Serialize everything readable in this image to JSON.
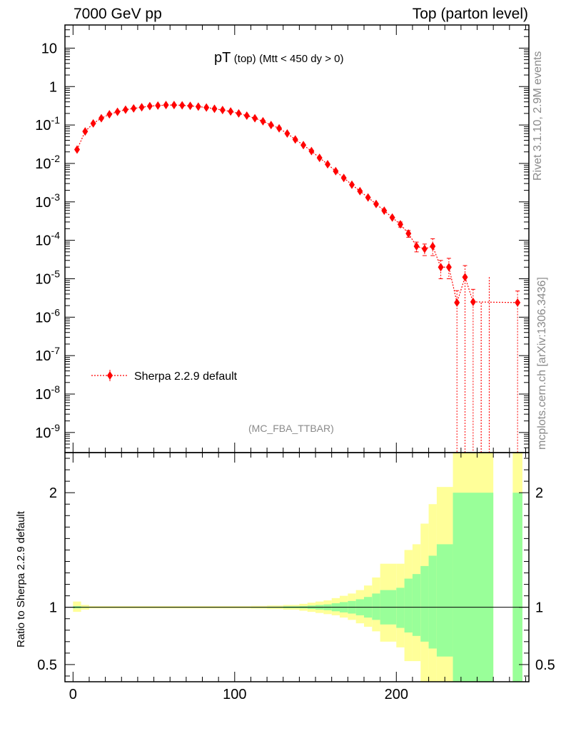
{
  "header": {
    "left": "7000 GeV pp",
    "right": "Top (parton level)"
  },
  "plot_title": {
    "main": "pT",
    "sub1": "(top)",
    "sub2": "(Mtt < 450 dy > 0)"
  },
  "side_labels": {
    "rivet": "Rivet 3.1.10,  2.9M events",
    "mcplots": "mcplots.cern.ch [arXiv:1306.3436]"
  },
  "analysis_tag": "(MC_FBA_TTBAR)",
  "ratio_ylabel": "Ratio to Sherpa 2.2.9 default",
  "colors": {
    "series": "#ff0000",
    "band_inner": "#99ff99",
    "band_outer": "#ffff99",
    "tag": "#8a8a8a"
  },
  "chart_data": {
    "type": "scatter",
    "xlim": [
      -5,
      282
    ],
    "main_panel": {
      "yscale": "log",
      "ylim": [
        3e-10,
        40
      ],
      "yticks": [
        {
          "v": 1e-09,
          "base": "10",
          "exp": "-9"
        },
        {
          "v": 1e-08,
          "base": "10",
          "exp": "-8"
        },
        {
          "v": 1e-07,
          "base": "10",
          "exp": "-7"
        },
        {
          "v": 1e-06,
          "base": "10",
          "exp": "-6"
        },
        {
          "v": 1e-05,
          "base": "10",
          "exp": "-5"
        },
        {
          "v": 0.0001,
          "base": "10",
          "exp": "-4"
        },
        {
          "v": 0.001,
          "base": "10",
          "exp": "-3"
        },
        {
          "v": 0.01,
          "base": "10",
          "exp": "-2"
        },
        {
          "v": 0.1,
          "base": "10",
          "exp": "-1"
        },
        {
          "v": 1,
          "base": "1",
          "exp": ""
        },
        {
          "v": 10,
          "base": "10",
          "exp": ""
        }
      ]
    },
    "ratio_panel": {
      "ylim": [
        0.35,
        2.35
      ],
      "yticks": [
        0.5,
        1,
        2
      ],
      "ytick_labels": [
        "0.5",
        "1",
        "2"
      ],
      "bands": [
        {
          "x0": 0,
          "x1": 5,
          "in_lo": 0.99,
          "in_hi": 1.01,
          "out_lo": 0.96,
          "out_hi": 1.05
        },
        {
          "x0": 5,
          "x1": 10,
          "in_lo": 0.995,
          "in_hi": 1.005,
          "out_lo": 0.98,
          "out_hi": 1.02
        },
        {
          "x0": 10,
          "x1": 110,
          "in_lo": 0.997,
          "in_hi": 1.003,
          "out_lo": 0.99,
          "out_hi": 1.01
        },
        {
          "x0": 110,
          "x1": 120,
          "in_lo": 0.996,
          "in_hi": 1.004,
          "out_lo": 0.988,
          "out_hi": 1.012
        },
        {
          "x0": 120,
          "x1": 130,
          "in_lo": 0.995,
          "in_hi": 1.005,
          "out_lo": 0.985,
          "out_hi": 1.015
        },
        {
          "x0": 130,
          "x1": 140,
          "in_lo": 0.992,
          "in_hi": 1.008,
          "out_lo": 0.98,
          "out_hi": 1.02
        },
        {
          "x0": 140,
          "x1": 145,
          "in_lo": 0.99,
          "in_hi": 1.01,
          "out_lo": 0.97,
          "out_hi": 1.03
        },
        {
          "x0": 145,
          "x1": 150,
          "in_lo": 0.985,
          "in_hi": 1.015,
          "out_lo": 0.96,
          "out_hi": 1.04
        },
        {
          "x0": 150,
          "x1": 155,
          "in_lo": 0.98,
          "in_hi": 1.02,
          "out_lo": 0.95,
          "out_hi": 1.05
        },
        {
          "x0": 155,
          "x1": 160,
          "in_lo": 0.975,
          "in_hi": 1.025,
          "out_lo": 0.94,
          "out_hi": 1.06
        },
        {
          "x0": 160,
          "x1": 165,
          "in_lo": 0.965,
          "in_hi": 1.035,
          "out_lo": 0.93,
          "out_hi": 1.08
        },
        {
          "x0": 165,
          "x1": 170,
          "in_lo": 0.955,
          "in_hi": 1.045,
          "out_lo": 0.91,
          "out_hi": 1.1
        },
        {
          "x0": 170,
          "x1": 175,
          "in_lo": 0.945,
          "in_hi": 1.055,
          "out_lo": 0.89,
          "out_hi": 1.12
        },
        {
          "x0": 175,
          "x1": 180,
          "in_lo": 0.93,
          "in_hi": 1.07,
          "out_lo": 0.86,
          "out_hi": 1.15
        },
        {
          "x0": 180,
          "x1": 185,
          "in_lo": 0.91,
          "in_hi": 1.09,
          "out_lo": 0.83,
          "out_hi": 1.19
        },
        {
          "x0": 185,
          "x1": 190,
          "in_lo": 0.89,
          "in_hi": 1.12,
          "out_lo": 0.79,
          "out_hi": 1.26
        },
        {
          "x0": 190,
          "x1": 200,
          "in_lo": 0.85,
          "in_hi": 1.15,
          "out_lo": 0.7,
          "out_hi": 1.38
        },
        {
          "x0": 200,
          "x1": 205,
          "in_lo": 0.82,
          "in_hi": 1.17,
          "out_lo": 0.65,
          "out_hi": 1.38
        },
        {
          "x0": 205,
          "x1": 210,
          "in_lo": 0.78,
          "in_hi": 1.25,
          "out_lo": 0.53,
          "out_hi": 1.5
        },
        {
          "x0": 210,
          "x1": 215,
          "in_lo": 0.75,
          "in_hi": 1.29,
          "out_lo": 0.53,
          "out_hi": 1.55
        },
        {
          "x0": 215,
          "x1": 220,
          "in_lo": 0.7,
          "in_hi": 1.36,
          "out_lo": 0.35,
          "out_hi": 1.73
        },
        {
          "x0": 220,
          "x1": 225,
          "in_lo": 0.64,
          "in_hi": 1.45,
          "out_lo": 0.35,
          "out_hi": 1.9
        },
        {
          "x0": 225,
          "x1": 235,
          "in_lo": 0.57,
          "in_hi": 1.55,
          "out_lo": 0.35,
          "out_hi": 2.05
        },
        {
          "x0": 235,
          "x1": 260,
          "in_lo": 0.35,
          "in_hi": 2.0,
          "out_lo": 0.35,
          "out_hi": 2.35
        },
        {
          "x0": 272,
          "x1": 278,
          "in_lo": 0.35,
          "in_hi": 2.0,
          "out_lo": 0.35,
          "out_hi": 2.35
        }
      ]
    },
    "xticks": [
      0,
      100,
      200
    ],
    "xtick_labels": [
      "0",
      "100",
      "200"
    ],
    "series": [
      {
        "name": "Sherpa 2.2.9 default",
        "x": [
          2.5,
          7.5,
          12.5,
          17.5,
          22.5,
          27.5,
          32.5,
          37.5,
          42.5,
          47.5,
          52.5,
          57.5,
          62.5,
          67.5,
          72.5,
          77.5,
          82.5,
          87.5,
          92.5,
          97.5,
          102.5,
          107.5,
          112.5,
          117.5,
          122.5,
          127.5,
          132.5,
          137.5,
          142.5,
          147.5,
          152.5,
          157.5,
          162.5,
          167.5,
          172.5,
          177.5,
          182.5,
          187.5,
          192.5,
          197.5,
          202.5,
          207.5,
          212.5,
          217.5,
          222.5,
          227.5,
          232.5,
          237.5,
          242.5,
          247.5,
          252.5,
          257.5,
          275
        ],
        "y": [
          0.023,
          0.068,
          0.11,
          0.15,
          0.19,
          0.22,
          0.25,
          0.27,
          0.29,
          0.31,
          0.32,
          0.33,
          0.33,
          0.325,
          0.315,
          0.3,
          0.285,
          0.265,
          0.245,
          0.225,
          0.2,
          0.175,
          0.15,
          0.125,
          0.1,
          0.082,
          0.06,
          0.042,
          0.03,
          0.021,
          0.014,
          0.0095,
          0.0063,
          0.0042,
          0.0028,
          0.0019,
          0.0013,
          0.00088,
          0.00059,
          0.00039,
          0.00026,
          0.00015,
          7e-05,
          6e-05,
          7e-05,
          2e-05,
          2e-05,
          2.4e-06,
          1.1e-05,
          2.5e-06,
          null,
          null,
          2.4e-06
        ],
        "yerr_lo": [
          0,
          0,
          0,
          0,
          0,
          0,
          0,
          0,
          0,
          0,
          0,
          0,
          0,
          0,
          0,
          0,
          0,
          0,
          0,
          0,
          0,
          0,
          0,
          0,
          0,
          0,
          0,
          0,
          0,
          0,
          0,
          0,
          0,
          0,
          0,
          0,
          0,
          0,
          0,
          0,
          4e-05,
          3e-05,
          2e-05,
          2e-05,
          3e-05,
          1e-05,
          1e-05,
          2.4e-06,
          1.1e-05,
          2.5e-06,
          null,
          null,
          2.4e-06
        ],
        "yerr_hi": [
          0,
          0,
          0,
          0,
          0,
          0,
          0,
          0,
          0,
          0,
          0,
          0,
          0,
          0,
          0,
          0,
          0,
          0,
          0,
          0,
          0,
          0,
          0,
          0,
          0,
          0,
          0,
          0,
          0,
          0,
          0,
          0,
          0,
          0,
          0,
          0,
          0,
          0,
          0,
          0,
          4e-05,
          3e-05,
          2e-05,
          2e-05,
          4e-05,
          1e-05,
          1.4e-05,
          2.5e-06,
          1.1e-05,
          2.8e-06,
          null,
          null,
          2.4e-06
        ]
      }
    ]
  }
}
